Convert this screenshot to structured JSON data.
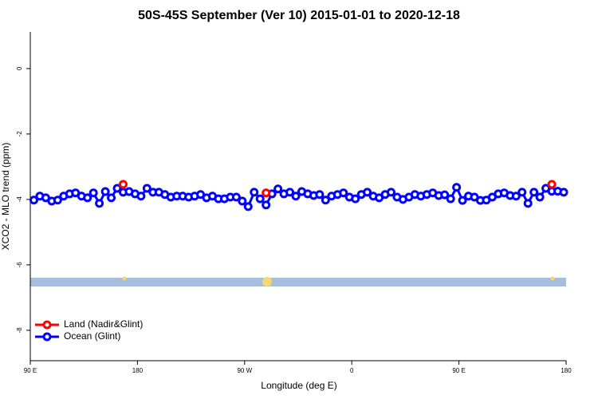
{
  "chart_data": {
    "type": "line",
    "title": "50S-45S September (Ver 10)   2015-01-01 to 2020-12-18",
    "x_label": "Longitude (deg E)",
    "y_label": "XCO2 - MLO trend (ppm)",
    "x": [
      93,
      98,
      103,
      108,
      113,
      118,
      123,
      128,
      133,
      138,
      143,
      148,
      153,
      158,
      163,
      168,
      173,
      178,
      183,
      188,
      193,
      198,
      203,
      208,
      213,
      218,
      223,
      228,
      233,
      238,
      243,
      248,
      253,
      258,
      263,
      268,
      273,
      278,
      283,
      288,
      293,
      298,
      303,
      308,
      313,
      318,
      323,
      328,
      333,
      338,
      343,
      348,
      353,
      358,
      363,
      368,
      373,
      378,
      383,
      388,
      393,
      398,
      403,
      408,
      413,
      418,
      423,
      428,
      433,
      438,
      443,
      448,
      453,
      458,
      463,
      468,
      473,
      478,
      483,
      488,
      493,
      498,
      503,
      508,
      513,
      518,
      523,
      528,
      533,
      538
    ],
    "series": [
      {
        "name": "Land (Nadir&Glint)",
        "color": "#ff0000",
        "values": [
          null,
          null,
          null,
          null,
          null,
          null,
          null,
          null,
          null,
          null,
          null,
          null,
          null,
          null,
          null,
          -3.54,
          null,
          null,
          null,
          null,
          null,
          null,
          null,
          null,
          null,
          null,
          null,
          null,
          null,
          null,
          null,
          null,
          null,
          null,
          null,
          null,
          null,
          null,
          null,
          -3.8,
          null,
          null,
          null,
          null,
          null,
          null,
          null,
          null,
          null,
          null,
          null,
          null,
          null,
          null,
          null,
          null,
          null,
          null,
          null,
          null,
          null,
          null,
          null,
          null,
          null,
          null,
          null,
          null,
          null,
          null,
          null,
          null,
          null,
          null,
          null,
          null,
          null,
          null,
          null,
          null,
          null,
          null,
          null,
          null,
          null,
          null,
          null,
          -3.54,
          null,
          null
        ]
      },
      {
        "name": "Ocean (Glint)",
        "color": "#0000ff",
        "values": [
          -4.02,
          -3.9,
          -3.95,
          -4.05,
          -4.02,
          -3.9,
          -3.83,
          -3.8,
          -3.9,
          -3.95,
          -3.8,
          -4.12,
          -3.76,
          -3.95,
          -3.66,
          -3.78,
          -3.76,
          -3.83,
          -3.9,
          -3.66,
          -3.78,
          -3.78,
          -3.85,
          -3.93,
          -3.9,
          -3.9,
          -3.93,
          -3.9,
          -3.85,
          -3.95,
          -3.9,
          -3.98,
          -3.98,
          -3.93,
          -3.93,
          -4.05,
          -4.22,
          -3.78,
          -3.98,
          -4.17,
          -3.83,
          -3.68,
          -3.83,
          -3.78,
          -3.9,
          -3.76,
          -3.83,
          -3.88,
          -3.85,
          -4.02,
          -3.9,
          -3.85,
          -3.8,
          -3.93,
          -3.98,
          -3.85,
          -3.78,
          -3.9,
          -3.95,
          -3.85,
          -3.78,
          -3.93,
          -4.0,
          -3.93,
          -3.85,
          -3.9,
          -3.85,
          -3.8,
          -3.88,
          -3.86,
          -3.98,
          -3.63,
          -4.03,
          -3.9,
          -3.93,
          -4.03,
          -4.02,
          -3.93,
          -3.83,
          -3.8,
          -3.88,
          -3.9,
          -3.78,
          -4.12,
          -3.78,
          -3.93,
          -3.66,
          -3.75,
          -3.75,
          -3.78
        ]
      }
    ],
    "xlim": [
      90,
      540
    ],
    "xticks": [
      {
        "value": 90,
        "label": "90 E"
      },
      180,
      {
        "value": 270,
        "label": "90 W"
      },
      {
        "value": 360,
        "label": "0"
      },
      {
        "value": 450,
        "label": "90 E"
      },
      {
        "value": 540,
        "label": "180"
      }
    ],
    "ylim": [
      -8.93,
      1.12
    ],
    "yticks": [
      0,
      -2,
      -4,
      -6,
      -8
    ],
    "legend": "bottom-left"
  }
}
